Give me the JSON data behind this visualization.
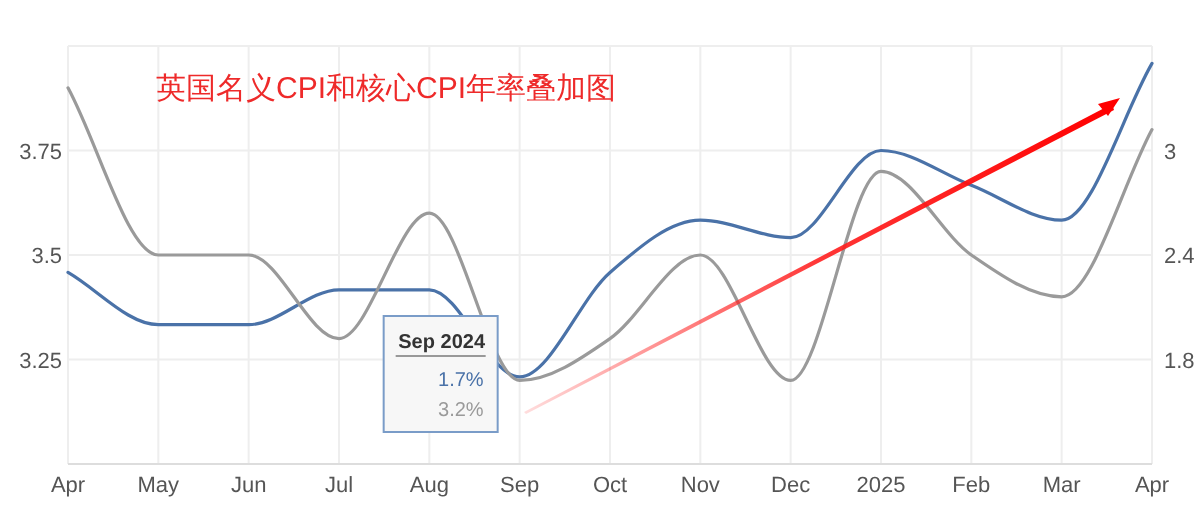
{
  "chart_data": {
    "type": "line",
    "title": "英国名义CPI和核心CPI年率叠加图",
    "categories": [
      "Apr",
      "May",
      "Jun",
      "Jul",
      "Aug",
      "Sep",
      "Oct",
      "Nov",
      "Dec",
      "2025",
      "Feb",
      "Mar",
      "Apr"
    ],
    "series": [
      {
        "color": "#4a72a8",
        "axis": "y2",
        "values": [
          2.3,
          2.0,
          2.0,
          2.2,
          2.2,
          1.7,
          2.3,
          2.6,
          2.5,
          3.0,
          2.8,
          2.6,
          3.5
        ]
      },
      {
        "color": "#9a9a9a",
        "values": [
          3.9,
          3.5,
          3.5,
          3.3,
          3.6,
          3.2,
          3.3,
          3.5,
          3.2,
          3.7,
          3.5,
          3.4,
          3.8
        ]
      }
    ],
    "ylim": [
      3.0,
      4.0
    ],
    "yticks": [
      {
        "value": 3.0,
        "label": null
      },
      3.25,
      3.5,
      3.75,
      {
        "value": 4.0,
        "label": null
      }
    ],
    "y2lim": [
      1.2,
      3.6
    ],
    "y2ticks": [
      1.8,
      2.4,
      3
    ],
    "grid": true,
    "marker": "none",
    "line_style": "solid",
    "annotations": [
      "Sep 2024",
      "1.7%",
      "3.2%"
    ]
  }
}
